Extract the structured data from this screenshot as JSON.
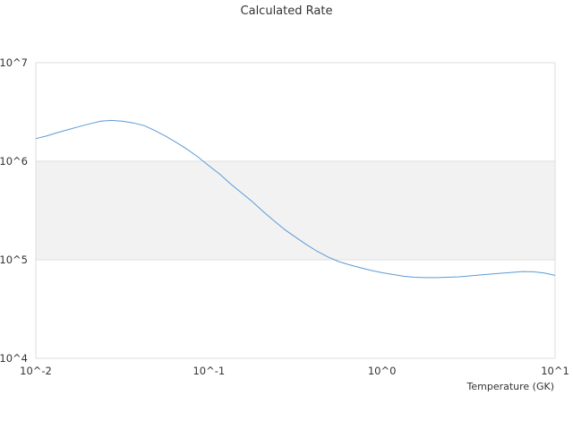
{
  "chart_data": {
    "type": "line",
    "title": "Calculated Rate",
    "xlabel": "Temperature (GK)",
    "ylabel": "",
    "x_scale": "log",
    "y_scale": "log",
    "xlim": [
      0.01,
      10
    ],
    "ylim": [
      10000,
      10000000
    ],
    "x_ticks": [
      {
        "value": 0.01,
        "label": "10^-2"
      },
      {
        "value": 0.1,
        "label": "10^-1"
      },
      {
        "value": 1,
        "label": "10^0"
      },
      {
        "value": 10,
        "label": "10^1"
      }
    ],
    "y_ticks": [
      {
        "value": 10000,
        "label": "10^4"
      },
      {
        "value": 100000,
        "label": "10^5"
      },
      {
        "value": 1000000,
        "label": "10^6"
      },
      {
        "value": 10000000,
        "label": "10^7"
      }
    ],
    "grid": true,
    "alternate_band_color": "#f2f2f2",
    "line_color": "#5b9bd5",
    "series": [
      {
        "x": [
          0.01,
          0.0115,
          0.0133,
          0.0154,
          0.0178,
          0.0205,
          0.0237,
          0.0274,
          0.0316,
          0.0365,
          0.0422,
          0.0487,
          0.0562,
          0.0649,
          0.075,
          0.0866,
          0.1,
          0.1155,
          0.1334,
          0.154,
          0.1778,
          0.2054,
          0.2371,
          0.2738,
          0.3162,
          0.3652,
          0.4217,
          0.487,
          0.5623,
          0.6494,
          0.7499,
          0.8661,
          1.0,
          1.155,
          1.334,
          1.54,
          1.778,
          2.054,
          2.371,
          2.738,
          3.162,
          3.652,
          4.217,
          4.87,
          5.623,
          6.494,
          7.499,
          8.661,
          10.0
        ],
        "y": [
          1700000,
          1800000,
          1950000,
          2100000,
          2250000,
          2400000,
          2550000,
          2600000,
          2550000,
          2450000,
          2300000,
          2050000,
          1800000,
          1550000,
          1320000,
          1100000,
          900000,
          740000,
          590000,
          480000,
          390000,
          310000,
          250000,
          203000,
          170000,
          143000,
          122000,
          107000,
          96000,
          89000,
          83000,
          78000,
          74000,
          71000,
          68000,
          66500,
          66000,
          66000,
          66500,
          67000,
          68500,
          70000,
          71500,
          73000,
          74500,
          76000,
          75500,
          73500,
          69500
        ]
      }
    ]
  }
}
